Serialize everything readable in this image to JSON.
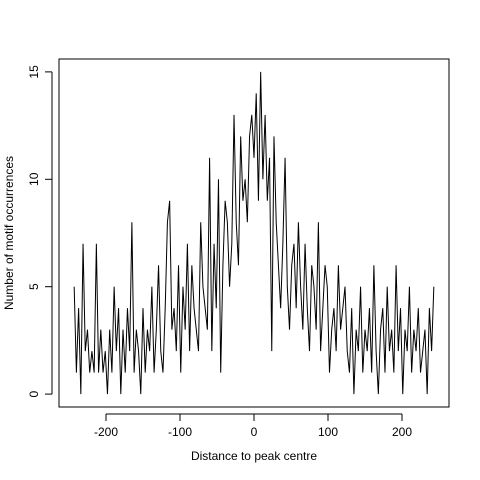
{
  "chart_data": {
    "type": "line",
    "x_label": "Distance to peak centre",
    "y_label": "Number of motif occurrences",
    "color": "#000000",
    "xlim": [
      -263.5,
      263.5
    ],
    "xticks": [
      -200,
      -100,
      0,
      100,
      200
    ],
    "ylim": [
      -0.6,
      15.6
    ],
    "yticks": [
      0,
      5,
      10,
      15
    ],
    "x": [
      -243,
      -240,
      -237,
      -234,
      -231,
      -228,
      -225,
      -222,
      -219,
      -216,
      -213,
      -210,
      -207,
      -204,
      -201,
      -198,
      -195,
      -192,
      -189,
      -186,
      -183,
      -180,
      -177,
      -174,
      -171,
      -168,
      -165,
      -162,
      -159,
      -156,
      -153,
      -150,
      -147,
      -144,
      -141,
      -138,
      -135,
      -132,
      -129,
      -126,
      -123,
      -120,
      -117,
      -114,
      -111,
      -108,
      -105,
      -102,
      -99,
      -96,
      -93,
      -90,
      -87,
      -84,
      -81,
      -78,
      -75,
      -72,
      -69,
      -66,
      -63,
      -60,
      -57,
      -54,
      -51,
      -48,
      -45,
      -42,
      -39,
      -36,
      -33,
      -30,
      -27,
      -24,
      -21,
      -18,
      -15,
      -12,
      -9,
      -6,
      -3,
      0,
      3,
      6,
      9,
      12,
      15,
      18,
      21,
      24,
      27,
      30,
      33,
      36,
      39,
      42,
      45,
      48,
      51,
      54,
      57,
      60,
      63,
      66,
      69,
      72,
      75,
      78,
      81,
      84,
      87,
      90,
      93,
      96,
      99,
      102,
      105,
      108,
      111,
      114,
      117,
      120,
      123,
      126,
      129,
      132,
      135,
      138,
      141,
      144,
      147,
      150,
      153,
      156,
      159,
      162,
      165,
      168,
      171,
      174,
      177,
      180,
      183,
      186,
      189,
      192,
      195,
      198,
      201,
      204,
      207,
      210,
      213,
      216,
      219,
      222,
      225,
      228,
      231,
      234,
      237,
      240,
      243
    ],
    "values": [
      5,
      1,
      4,
      0,
      7,
      2,
      3,
      1,
      2,
      1,
      7,
      1,
      3,
      1,
      2,
      0,
      3,
      1,
      5,
      2,
      4,
      0,
      3,
      1,
      4,
      2,
      8,
      1,
      3,
      2,
      0,
      4,
      1,
      3,
      2,
      5,
      1,
      3,
      6,
      2,
      1,
      4,
      8,
      9,
      3,
      4,
      2,
      6,
      1,
      5,
      3,
      7,
      2,
      6,
      4,
      3,
      2,
      8,
      5,
      4,
      3,
      11,
      2,
      7,
      4,
      10,
      1,
      6,
      9,
      8,
      5,
      7,
      13,
      8,
      6,
      12,
      9,
      10,
      8,
      12,
      13,
      11,
      14,
      9,
      15,
      10,
      13,
      9,
      11,
      2,
      12,
      8,
      6,
      4,
      7,
      11,
      5,
      3,
      6,
      7,
      4,
      8,
      5,
      3,
      7,
      4,
      2,
      6,
      5,
      3,
      8,
      2,
      4,
      6,
      5,
      1,
      3,
      4,
      2,
      6,
      3,
      4,
      5,
      2,
      1,
      4,
      0,
      3,
      2,
      5,
      1,
      3,
      2,
      4,
      1,
      6,
      2,
      0,
      3,
      4,
      1,
      5,
      2,
      3,
      1,
      6,
      2,
      4,
      0,
      3,
      2,
      5,
      1,
      3,
      2,
      4,
      1,
      2,
      3,
      0,
      4,
      2,
      5
    ]
  }
}
